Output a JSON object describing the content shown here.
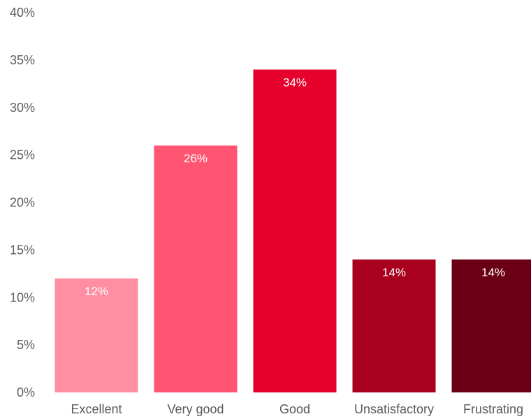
{
  "chart_data": {
    "type": "bar",
    "categories": [
      "Excellent",
      "Very good",
      "Good",
      "Unsatisfactory",
      "Frustrating"
    ],
    "values": [
      12,
      26,
      34,
      14,
      14
    ],
    "value_labels": [
      "12%",
      "26%",
      "34%",
      "14%",
      "14%"
    ],
    "title": "",
    "xlabel": "",
    "ylabel": "",
    "ylim": [
      0,
      40
    ],
    "yticks": [
      0,
      5,
      10,
      15,
      20,
      25,
      30,
      35,
      40
    ],
    "ytick_labels": [
      "0%",
      "5%",
      "10%",
      "15%",
      "20%",
      "25%",
      "30%",
      "35%",
      "40%"
    ],
    "grid": false,
    "legend": "none",
    "colors": [
      "#ff8fa0",
      "#ff5573",
      "#e6002c",
      "#a8001f",
      "#6b0014"
    ]
  }
}
